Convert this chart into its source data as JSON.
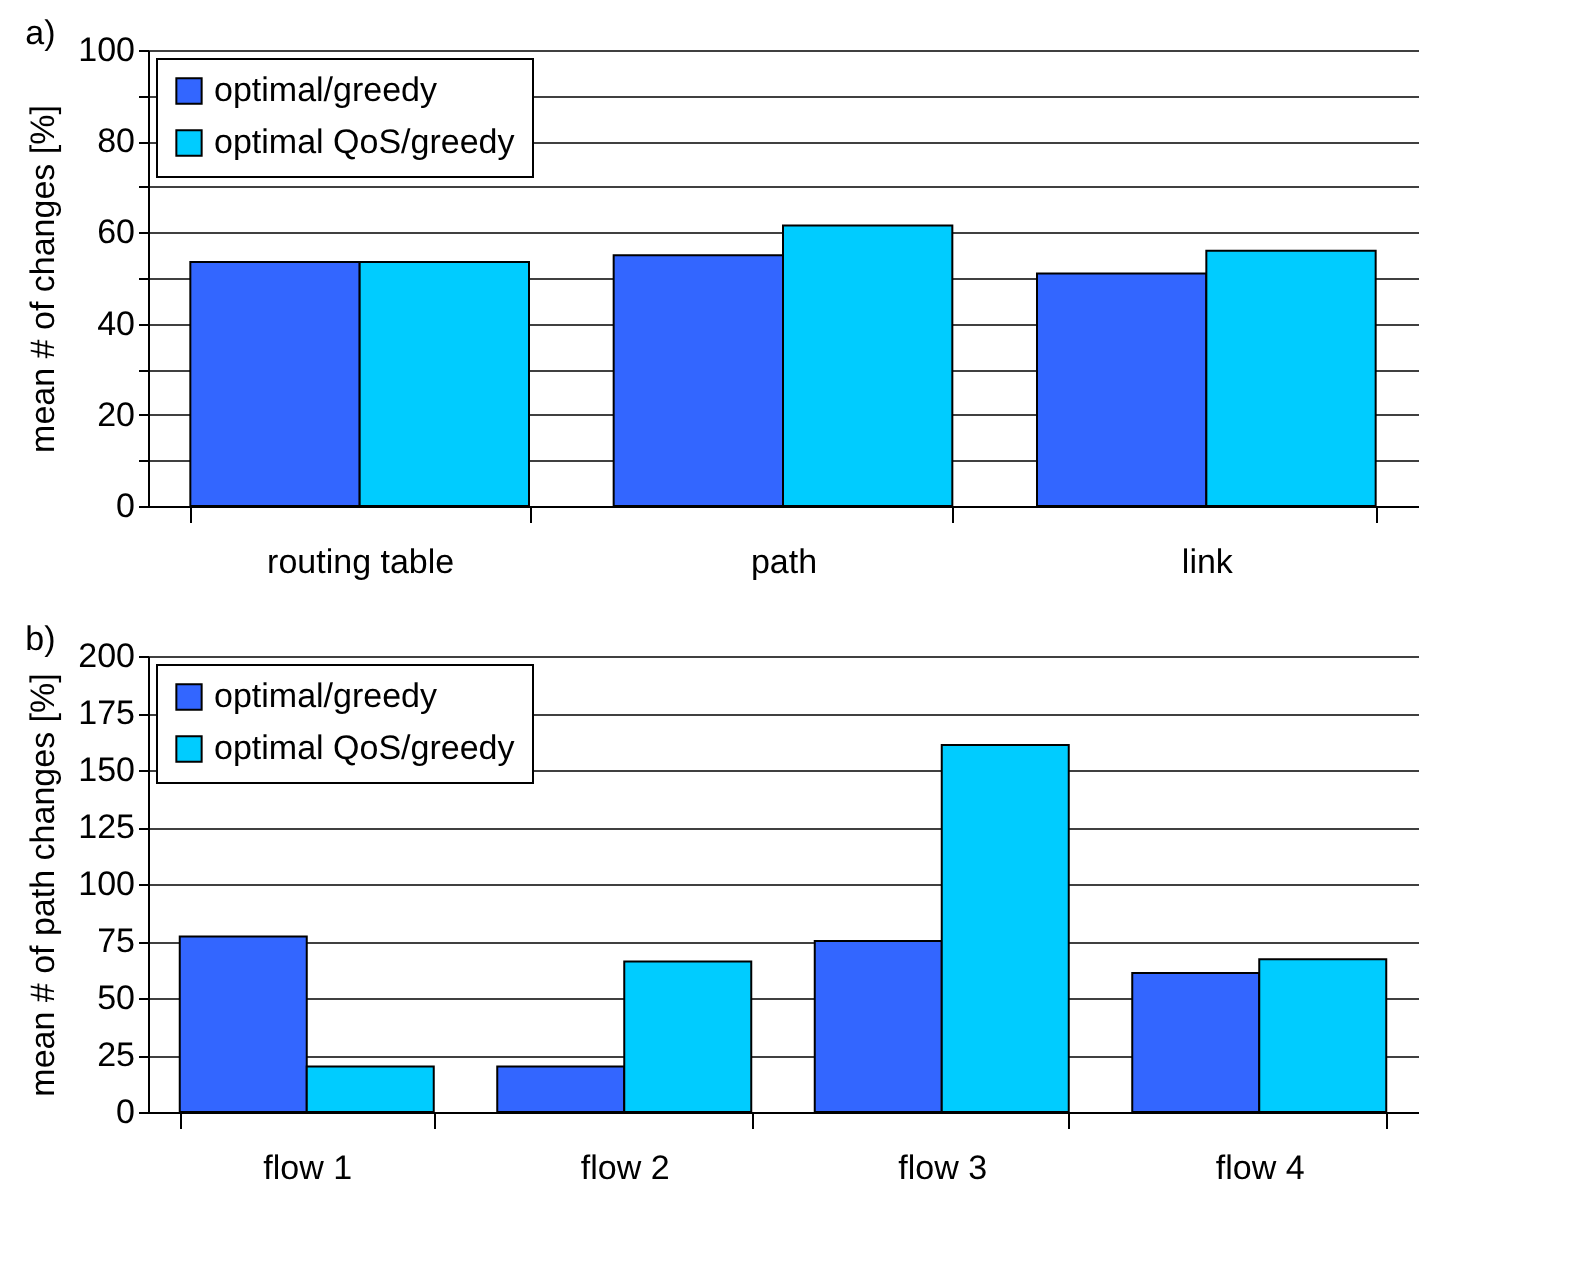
{
  "chart_data": [
    {
      "type": "bar",
      "title": "a)",
      "ylabel": "mean # of changes [%]",
      "categories": [
        "routing table",
        "path",
        "link"
      ],
      "series": [
        {
          "name": "optimal/greedy",
          "color": "#3366ff",
          "values": [
            53.5,
            55,
            51
          ]
        },
        {
          "name": "optimal QoS/greedy",
          "color": "#00ccff",
          "values": [
            53.5,
            61.5,
            56
          ]
        }
      ],
      "ylim": [
        0,
        100
      ],
      "yticks": [
        0,
        {
          "value": 10,
          "label": null
        },
        20,
        {
          "value": 30,
          "label": null
        },
        40,
        {
          "value": 50,
          "label": null
        },
        60,
        {
          "value": 70,
          "label": null
        },
        80,
        {
          "value": 90,
          "label": null
        },
        100
      ],
      "grid": "y",
      "legend": "top left"
    },
    {
      "type": "bar",
      "title": "b)",
      "ylabel": "mean # of path changes [%]",
      "categories": [
        "flow 1",
        "flow 2",
        "flow 3",
        "flow 4"
      ],
      "series": [
        {
          "name": "optimal/greedy",
          "color": "#3366ff",
          "values": [
            77,
            20,
            75,
            61
          ]
        },
        {
          "name": "optimal QoS/greedy",
          "color": "#00ccff",
          "values": [
            20,
            66,
            161,
            67
          ]
        }
      ],
      "ylim": [
        0,
        200
      ],
      "yticks": [
        0,
        25,
        50,
        75,
        100,
        125,
        150,
        175,
        200
      ],
      "grid": "y",
      "legend": "top left"
    }
  ]
}
